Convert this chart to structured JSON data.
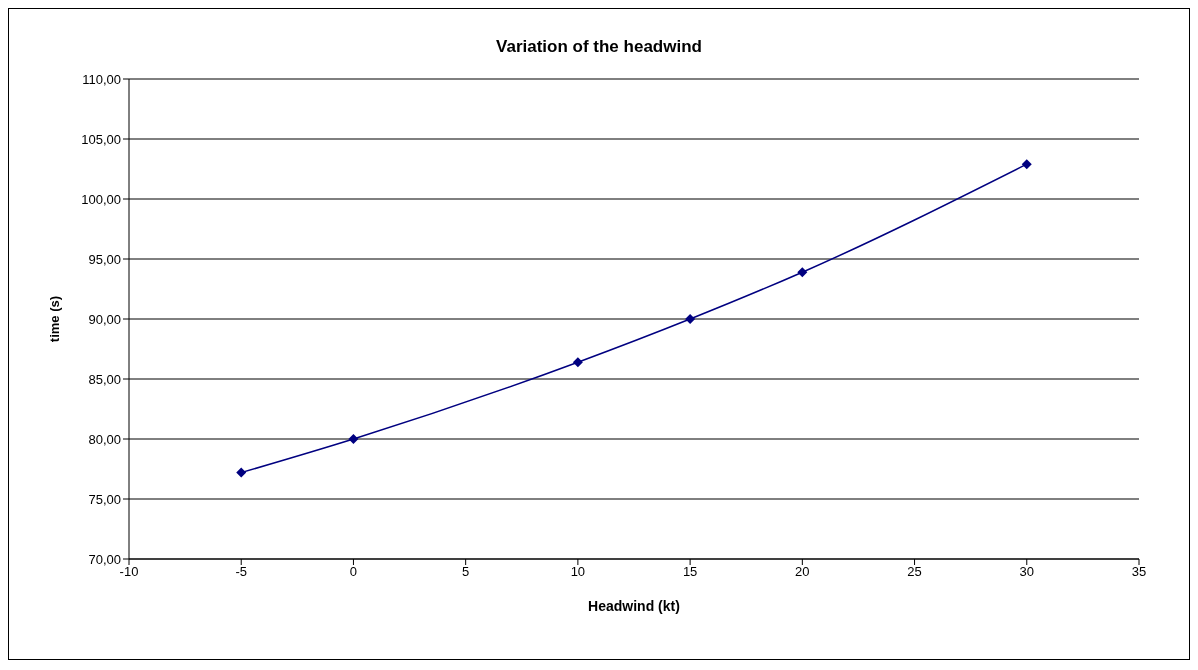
{
  "chart_data": {
    "type": "line",
    "title": "Variation of the headwind",
    "xlabel": "Headwind (kt)",
    "ylabel": "time (s)",
    "x": [
      -5,
      0,
      10,
      15,
      20,
      30
    ],
    "series": [
      {
        "color": "#000080",
        "values": [
          77.2,
          80,
          86.4,
          90,
          93.9,
          102.9
        ]
      }
    ],
    "xlim": [
      -10,
      35
    ],
    "xticks": [
      -10,
      -5,
      0,
      5,
      10,
      15,
      20,
      25,
      30,
      35
    ],
    "ylim": [
      70,
      110
    ],
    "yticks": [
      {
        "value": 70,
        "label": "70,00"
      },
      {
        "value": 75,
        "label": "75,00"
      },
      {
        "value": 80,
        "label": "80,00"
      },
      {
        "value": 85,
        "label": "85,00"
      },
      {
        "value": 90,
        "label": "90,00"
      },
      {
        "value": 95,
        "label": "95,00"
      },
      {
        "value": 100,
        "label": "100,00"
      },
      {
        "value": 105,
        "label": "105,00"
      },
      {
        "value": 110,
        "label": "110,00"
      }
    ],
    "grid": "y",
    "legend": false,
    "marker": "diamond",
    "line_style": "solid"
  }
}
